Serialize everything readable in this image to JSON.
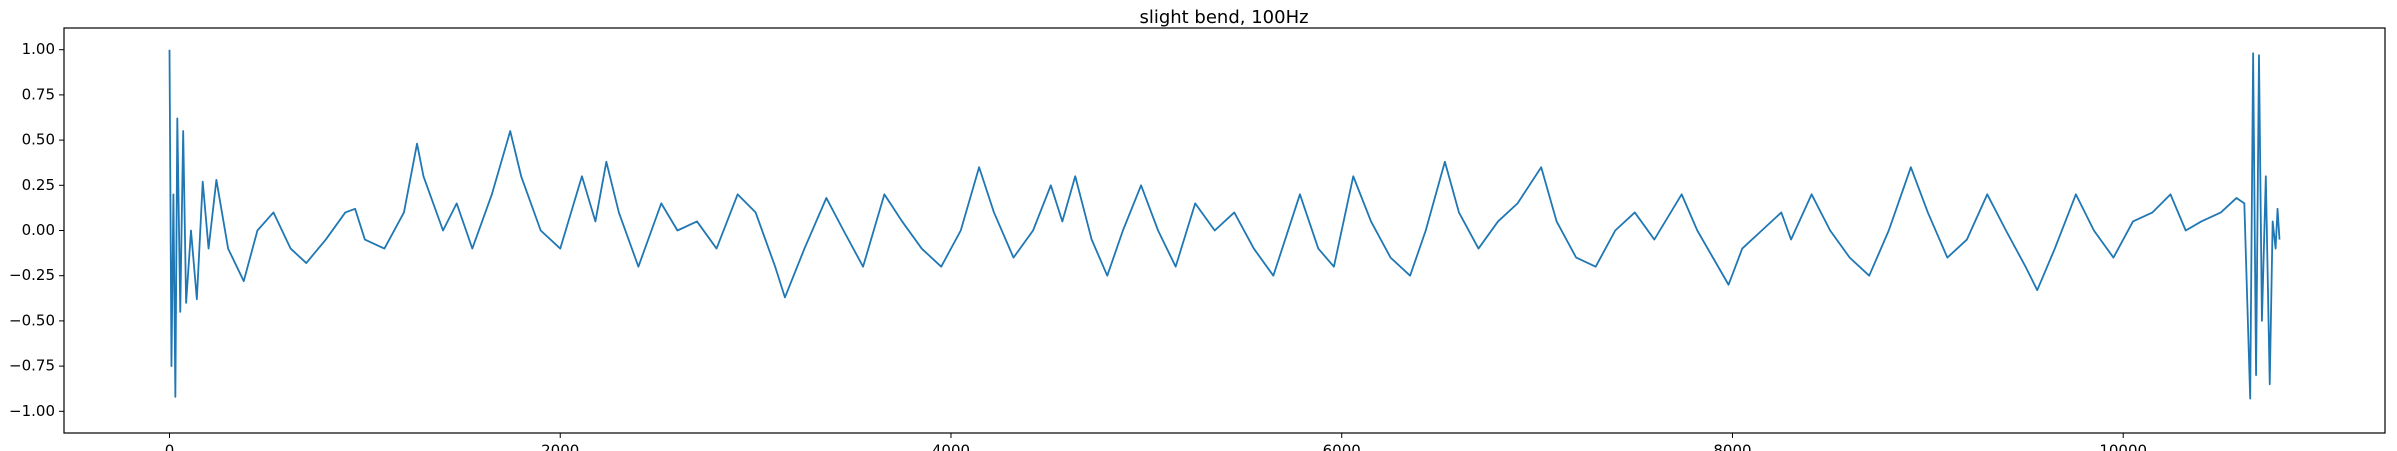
{
  "chart_data": {
    "type": "line",
    "title": "slight bend, 100Hz",
    "x": [
      0,
      10,
      20,
      30,
      40,
      55,
      70,
      85,
      110,
      140,
      170,
      200,
      240,
      300,
      380,
      450,
      532,
      620,
      700,
      800,
      900,
      950,
      1000,
      1100,
      1200,
      1267,
      1300,
      1400,
      1470,
      1550,
      1650,
      1744,
      1800,
      1900,
      2000,
      2111,
      2180,
      2236,
      2300,
      2400,
      2517,
      2600,
      2700,
      2800,
      2908,
      3000,
      3100,
      3150,
      3250,
      3362,
      3450,
      3550,
      3659,
      3750,
      3850,
      3950,
      4050,
      4144,
      4220,
      4320,
      4420,
      4511,
      4570,
      4636,
      4720,
      4800,
      4880,
      4973,
      5060,
      5150,
      5250,
      5350,
      5450,
      5550,
      5650,
      5786,
      5880,
      5960,
      6059,
      6150,
      6250,
      6350,
      6430,
      6528,
      6600,
      6700,
      6800,
      6900,
      7021,
      7100,
      7200,
      7300,
      7400,
      7500,
      7600,
      7740,
      7820,
      7900,
      7980,
      8050,
      8150,
      8250,
      8300,
      8405,
      8500,
      8600,
      8700,
      8800,
      8913,
      9000,
      9100,
      9200,
      9304,
      9400,
      9500,
      9560,
      9650,
      9758,
      9850,
      9950,
      10050,
      10150,
      10242,
      10320,
      10400,
      10500,
      10580,
      10620,
      10650,
      10665,
      10680,
      10695,
      10710,
      10730,
      10750,
      10765,
      10780,
      10790,
      10800
    ],
    "series": [
      {
        "color": "#1f77b4",
        "values": [
          1.0,
          -0.75,
          0.2,
          -0.92,
          0.62,
          -0.45,
          0.55,
          -0.4,
          0.0,
          -0.38,
          0.27,
          -0.1,
          0.28,
          -0.1,
          -0.28,
          0.0,
          0.1,
          -0.1,
          -0.18,
          -0.05,
          0.1,
          0.12,
          -0.05,
          -0.1,
          0.1,
          0.48,
          0.3,
          0.0,
          0.15,
          -0.1,
          0.2,
          0.55,
          0.3,
          0.0,
          -0.1,
          0.3,
          0.05,
          0.38,
          0.1,
          -0.2,
          0.15,
          0.0,
          0.05,
          -0.1,
          0.2,
          0.1,
          -0.2,
          -0.37,
          -0.1,
          0.18,
          0.0,
          -0.2,
          0.2,
          0.05,
          -0.1,
          -0.2,
          0.0,
          0.35,
          0.1,
          -0.15,
          0.0,
          0.25,
          0.05,
          0.3,
          -0.05,
          -0.25,
          0.0,
          0.25,
          0.0,
          -0.2,
          0.15,
          0.0,
          0.1,
          -0.1,
          -0.25,
          0.2,
          -0.1,
          -0.2,
          0.3,
          0.05,
          -0.15,
          -0.25,
          0.0,
          0.38,
          0.1,
          -0.1,
          0.05,
          0.15,
          0.35,
          0.05,
          -0.15,
          -0.2,
          0.0,
          0.1,
          -0.05,
          0.2,
          0.0,
          -0.15,
          -0.3,
          -0.1,
          0.0,
          0.1,
          -0.05,
          0.2,
          0.0,
          -0.15,
          -0.25,
          0.0,
          0.35,
          0.1,
          -0.15,
          -0.05,
          0.2,
          0.0,
          -0.2,
          -0.33,
          -0.1,
          0.2,
          0.0,
          -0.15,
          0.05,
          0.1,
          0.2,
          0.0,
          0.05,
          0.1,
          0.18,
          0.15,
          -0.93,
          0.98,
          -0.8,
          0.97,
          -0.5,
          0.3,
          -0.85,
          0.05,
          -0.1,
          0.12,
          -0.05
        ]
      }
    ],
    "xlim": [
      -540,
      11340
    ],
    "xticks": [
      0,
      2000,
      4000,
      6000,
      8000,
      10000
    ],
    "ylim": [
      -1.12,
      1.12
    ],
    "yticks": [
      {
        "value": -1,
        "label": "−1.00"
      },
      {
        "value": -0.75,
        "label": "−0.75"
      },
      {
        "value": -0.5,
        "label": "−0.50"
      },
      {
        "value": -0.25,
        "label": "−0.25"
      },
      {
        "value": 0,
        "label": "0.00"
      },
      {
        "value": 0.25,
        "label": "0.25"
      },
      {
        "value": 0.5,
        "label": "0.50"
      },
      {
        "value": 0.75,
        "label": "0.75"
      },
      {
        "value": 1,
        "label": "1.00"
      }
    ]
  }
}
